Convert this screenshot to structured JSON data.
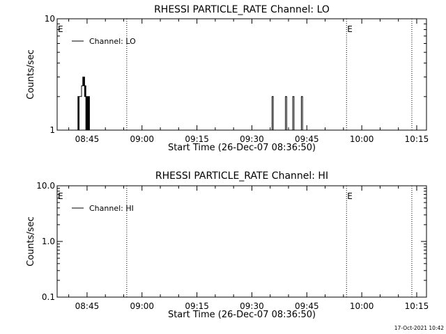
{
  "chart_data": [
    {
      "type": "line",
      "title": "RHESSI PARTICLE_RATE Channel: LO",
      "xlabel": "Start Time (26-Dec-07 08:36:50)",
      "ylabel": "Counts/sec",
      "y_scale": "log",
      "ylim": [
        1,
        10
      ],
      "y_ticks": [
        1,
        10
      ],
      "y_tick_labels": [
        "1",
        "10"
      ],
      "x_range": [
        "08:36:50",
        "10:17:40"
      ],
      "x_ticks": [
        "08:45",
        "09:00",
        "09:15",
        "09:30",
        "09:45",
        "10:00",
        "10:15"
      ],
      "legend": {
        "label": "Channel: LO",
        "placement": "top-left"
      },
      "event_markers": [
        {
          "time": "08:36:50",
          "label": "E"
        },
        {
          "time": "08:55:50",
          "label": ""
        },
        {
          "time": "09:55:50",
          "label": "E"
        },
        {
          "time": "10:13:40",
          "label": ""
        }
      ],
      "series": [
        {
          "points": [
            [
              "08:42:20",
              1
            ],
            [
              "08:42:30",
              2
            ],
            [
              "08:42:40",
              1
            ],
            [
              "08:42:50",
              2
            ],
            [
              "08:43:00",
              2
            ],
            [
              "08:43:20",
              2
            ],
            [
              "08:43:30",
              2.5
            ],
            [
              "08:43:50",
              3
            ],
            [
              "08:44:00",
              2.5
            ],
            [
              "08:44:10",
              3
            ],
            [
              "08:44:20",
              2
            ],
            [
              "08:44:30",
              2.5
            ],
            [
              "08:44:40",
              1
            ],
            [
              "08:44:50",
              2
            ],
            [
              "08:45:00",
              1
            ],
            [
              "08:45:10",
              2
            ],
            [
              "08:45:20",
              1
            ],
            [
              "08:45:30",
              2
            ],
            [
              "08:45:40",
              1
            ],
            [
              "09:35:10",
              1
            ],
            [
              "09:35:30",
              2
            ],
            [
              "09:35:50",
              1
            ],
            [
              "09:38:50",
              1
            ],
            [
              "09:39:10",
              2
            ],
            [
              "09:39:30",
              1
            ],
            [
              "09:40:50",
              1
            ],
            [
              "09:41:10",
              2
            ],
            [
              "09:41:30",
              1
            ],
            [
              "09:43:10",
              1
            ],
            [
              "09:43:30",
              2
            ],
            [
              "09:43:50",
              1
            ]
          ]
        }
      ]
    },
    {
      "type": "line",
      "title": "RHESSI PARTICLE_RATE Channel: HI",
      "xlabel": "Start Time (26-Dec-07 08:36:50)",
      "ylabel": "Counts/sec",
      "y_scale": "log",
      "ylim": [
        0.1,
        10
      ],
      "y_ticks": [
        0.1,
        1,
        10
      ],
      "y_tick_labels": [
        "0.1",
        "1.0",
        "10.0"
      ],
      "x_range": [
        "08:36:50",
        "10:17:40"
      ],
      "x_ticks": [
        "08:45",
        "09:00",
        "09:15",
        "09:30",
        "09:45",
        "10:00",
        "10:15"
      ],
      "legend": {
        "label": "Channel: HI",
        "placement": "top-left"
      },
      "event_markers": [
        {
          "time": "08:36:50",
          "label": "E"
        },
        {
          "time": "08:55:50",
          "label": ""
        },
        {
          "time": "09:55:50",
          "label": "E"
        },
        {
          "time": "10:13:40",
          "label": ""
        }
      ],
      "series": [
        {
          "points": []
        }
      ]
    }
  ],
  "footer": {
    "timestamp": "17-Oct-2021 10:42"
  }
}
